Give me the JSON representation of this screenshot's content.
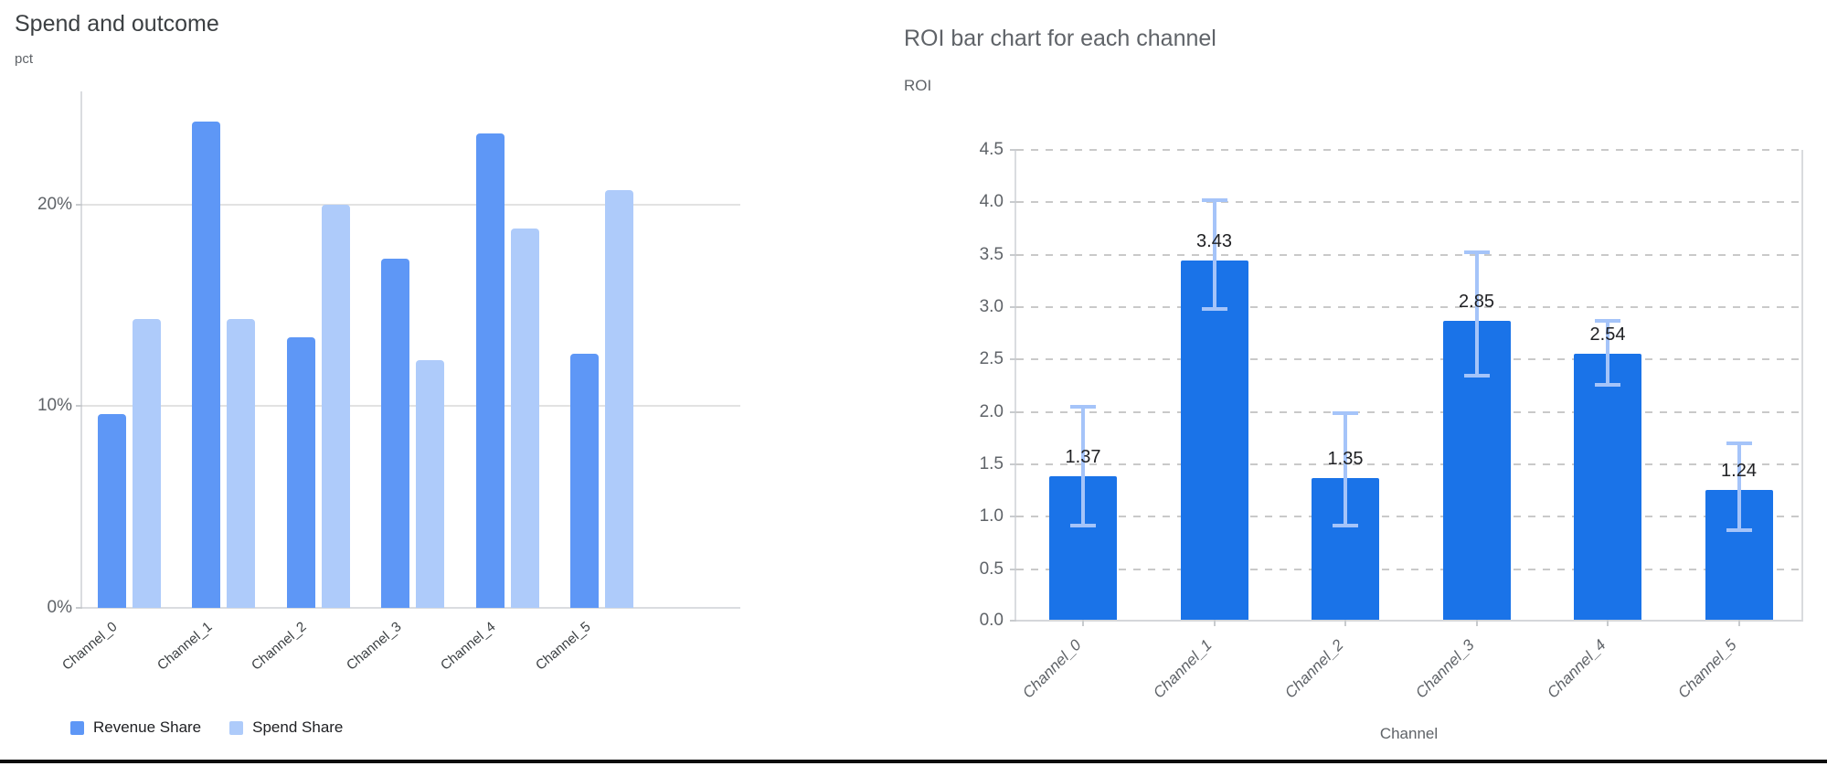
{
  "chart_data": [
    {
      "type": "bar",
      "title": "Spend and outcome",
      "ylabel": "pct",
      "xlabel": "",
      "categories": [
        "Channel_0",
        "Channel_1",
        "Channel_2",
        "Channel_3",
        "Channel_4",
        "Channel_5"
      ],
      "series": [
        {
          "name": "Revenue Share",
          "color": "#5E97F6",
          "values": [
            9.6,
            24.1,
            13.4,
            17.3,
            23.5,
            12.6
          ]
        },
        {
          "name": "Spend Share",
          "color": "#AECBFA",
          "values": [
            14.3,
            14.3,
            20.0,
            12.3,
            18.8,
            20.7
          ]
        }
      ],
      "y_ticks": [
        {
          "value": 0,
          "label": "0%"
        },
        {
          "value": 10,
          "label": "10%"
        },
        {
          "value": 20,
          "label": "20%"
        }
      ],
      "ylim": [
        0,
        25.6
      ],
      "grid": "solid",
      "legend_position": "bottom"
    },
    {
      "type": "bar",
      "title": "ROI bar chart for each channel",
      "ylabel": "ROI",
      "xlabel": "Channel",
      "categories": [
        "Channel_0",
        "Channel_1",
        "Channel_2",
        "Channel_3",
        "Channel_4",
        "Channel_5"
      ],
      "values": [
        1.37,
        3.43,
        1.35,
        2.85,
        2.54,
        1.24
      ],
      "value_labels": [
        "1.37",
        "3.43",
        "1.35",
        "2.85",
        "2.54",
        "1.24"
      ],
      "error_bars": [
        {
          "low": 0.88,
          "high": 2.05
        },
        {
          "low": 2.95,
          "high": 4.02
        },
        {
          "low": 0.88,
          "high": 1.99
        },
        {
          "low": 2.31,
          "high": 3.52
        },
        {
          "low": 2.22,
          "high": 2.87
        },
        {
          "low": 0.84,
          "high": 1.7
        }
      ],
      "bar_color": "#1A73E8",
      "error_color": "#A5C4F9",
      "y_ticks": [
        {
          "value": 0.0,
          "label": "0.0"
        },
        {
          "value": 0.5,
          "label": "0.5"
        },
        {
          "value": 1.0,
          "label": "1.0"
        },
        {
          "value": 1.5,
          "label": "1.5"
        },
        {
          "value": 2.0,
          "label": "2.0"
        },
        {
          "value": 2.5,
          "label": "2.5"
        },
        {
          "value": 3.0,
          "label": "3.0"
        },
        {
          "value": 3.5,
          "label": "3.5"
        },
        {
          "value": 4.0,
          "label": "4.0"
        },
        {
          "value": 4.5,
          "label": "4.5"
        },
        {
          "value": 4.5,
          "label": "4.5"
        }
      ],
      "ylim": [
        0,
        4.5
      ],
      "grid": "dashed",
      "legend_position": "none"
    }
  ]
}
